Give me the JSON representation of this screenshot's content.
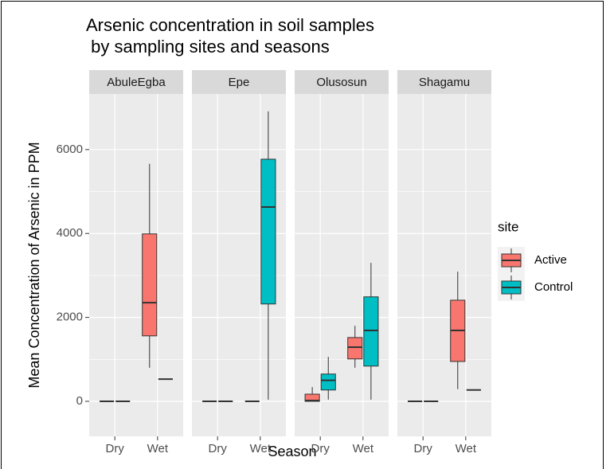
{
  "chart_data": {
    "type": "boxplot",
    "title": [
      "Arsenic concentration in soil samples",
      " by sampling sites and seasons"
    ],
    "x_label": "Season",
    "y_label": "Mean Concentration of Arsenic in PPM",
    "legend_title": "site",
    "legend_position": "right",
    "facets": [
      "AbuleEgba",
      "Epe",
      "Olusosun",
      "Shagamu"
    ],
    "categories": [
      "Dry",
      "Wet"
    ],
    "ylim": [
      -835,
      7325
    ],
    "yticks": [
      0,
      2000,
      4000,
      6000
    ],
    "minor_yticks": [
      1000,
      3000,
      5000
    ],
    "grid": true,
    "series": [
      {
        "name": "Active",
        "color": "#f8766d",
        "values": [
          [
            {
              "min": 0,
              "q1": 0,
              "median": 0,
              "q3": 0,
              "max": 0
            },
            {
              "min": 800,
              "q1": 1560,
              "median": 2350,
              "q3": 3990,
              "max": 5660
            }
          ],
          [
            {
              "min": 0,
              "q1": 0,
              "median": 0,
              "q3": 0,
              "max": 0
            },
            {
              "min": 0,
              "q1": 0,
              "median": 0,
              "q3": 0,
              "max": 0
            }
          ],
          [
            {
              "min": 0,
              "q1": 0,
              "median": 20,
              "q3": 170,
              "max": 340
            },
            {
              "min": 800,
              "q1": 1010,
              "median": 1290,
              "q3": 1520,
              "max": 1800
            }
          ],
          [
            {
              "min": 0,
              "q1": 0,
              "median": 0,
              "q3": 0,
              "max": 0
            },
            {
              "min": 290,
              "q1": 950,
              "median": 1690,
              "q3": 2410,
              "max": 3090
            }
          ]
        ]
      },
      {
        "name": "Control",
        "color": "#00bfc4",
        "values": [
          [
            {
              "min": 0,
              "q1": 0,
              "median": 0,
              "q3": 0,
              "max": 0
            },
            {
              "min": 530,
              "q1": 530,
              "median": 530,
              "q3": 530,
              "max": 530
            }
          ],
          [
            {
              "min": 0,
              "q1": 0,
              "median": 0,
              "q3": 0,
              "max": 0
            },
            {
              "min": 40,
              "q1": 2320,
              "median": 4630,
              "q3": 5770,
              "max": 6910
            }
          ],
          [
            {
              "min": 40,
              "q1": 270,
              "median": 500,
              "q3": 650,
              "max": 1060
            },
            {
              "min": 40,
              "q1": 840,
              "median": 1690,
              "q3": 2490,
              "max": 3300
            }
          ],
          [
            {
              "min": 0,
              "q1": 0,
              "median": 0,
              "q3": 0,
              "max": 0
            },
            {
              "min": 270,
              "q1": 270,
              "median": 270,
              "q3": 270,
              "max": 270
            }
          ]
        ]
      }
    ]
  }
}
